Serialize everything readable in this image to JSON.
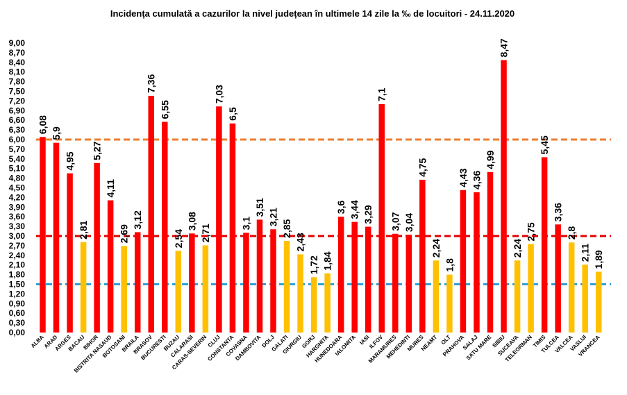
{
  "chart_data": {
    "type": "bar",
    "title": "Incidența cumulată a cazurilor la nivel județean în ultimele 14 zile la ‰ de locuitori - 24.11.2020",
    "xlabel": "",
    "ylabel": "",
    "ylim": [
      0,
      9.0
    ],
    "yticks": [
      "0,00",
      "0,30",
      "0,60",
      "0,90",
      "1,20",
      "1,50",
      "1,80",
      "2,10",
      "2,40",
      "2,70",
      "3,00",
      "3,30",
      "3,60",
      "3,90",
      "4,20",
      "4,50",
      "4,80",
      "5,10",
      "5,40",
      "5,70",
      "6,00",
      "6,30",
      "6,60",
      "6,90",
      "7,20",
      "7,50",
      "7,80",
      "8,10",
      "8,40",
      "8,70",
      "9,00"
    ],
    "categories": [
      "ALBA",
      "ARAD",
      "ARGES",
      "BACAU",
      "BIHOR",
      "BISTRITA NASAUD",
      "BOTOSANI",
      "BRAILA",
      "BRASOV",
      "BUCURESTI",
      "BUZAU",
      "CALARASI",
      "CARAS-SEVERIN",
      "CLUJ",
      "CONSTANTA",
      "COVASNA",
      "DAMBOVITA",
      "DOLJ",
      "GALATI",
      "GIURGIU",
      "GORJ",
      "HARGHITA",
      "HUNEDOARA",
      "IALOMITA",
      "IASI",
      "ILFOV",
      "MARAMURES",
      "MEHEDINTI",
      "MURES",
      "NEAMT",
      "OLT",
      "PRAHOVA",
      "SALAJ",
      "SATU MARE",
      "SIBIU",
      "SUCEAVA",
      "TELEORMAN",
      "TIMIS",
      "TULCEA",
      "VALCEA",
      "VASLUI",
      "VRANCEA"
    ],
    "values": [
      6.08,
      5.9,
      4.95,
      2.81,
      5.27,
      4.11,
      2.69,
      3.12,
      7.36,
      6.55,
      2.54,
      3.08,
      2.71,
      7.03,
      6.5,
      3.1,
      3.51,
      3.21,
      2.85,
      2.43,
      1.72,
      1.84,
      3.6,
      3.44,
      3.29,
      7.1,
      3.07,
      3.04,
      4.75,
      2.24,
      1.8,
      4.43,
      4.36,
      4.99,
      8.47,
      2.24,
      2.75,
      5.45,
      3.36,
      2.8,
      2.11,
      1.89
    ],
    "value_labels": [
      "6,08",
      "5,9",
      "4,95",
      "2,81",
      "5,27",
      "4,11",
      "2,69",
      "3,12",
      "7,36",
      "6,55",
      "2,54",
      "3,08",
      "2,71",
      "7,03",
      "6,5",
      "3,1",
      "3,51",
      "3,21",
      "2,85",
      "2,43",
      "1,72",
      "1,84",
      "3,6",
      "3,44",
      "3,29",
      "7,1",
      "3,07",
      "3,04",
      "4,75",
      "2,24",
      "1,8",
      "4,43",
      "4,36",
      "4,99",
      "8,47",
      "2,24",
      "2,75",
      "5,45",
      "3,36",
      "2,8",
      "2,11",
      "1,89"
    ],
    "threshold_lines": [
      {
        "value": 6.0,
        "color": "#ED7D31"
      },
      {
        "value": 3.0,
        "color": "#E00000"
      },
      {
        "value": 1.5,
        "color": "#2E9FD9"
      }
    ],
    "colors": {
      "high": "#FF0000",
      "low": "#FFC000"
    },
    "grid": false,
    "legend": "none"
  }
}
